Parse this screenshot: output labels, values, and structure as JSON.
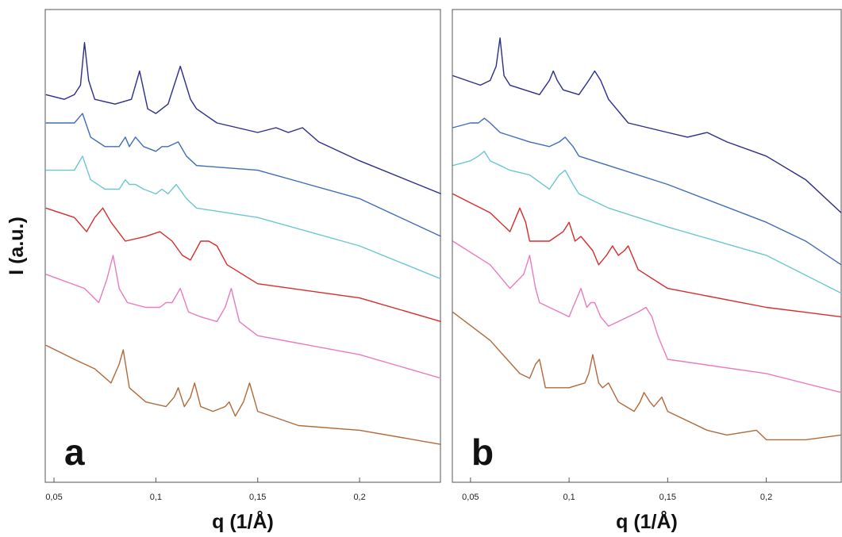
{
  "chart_data": [
    {
      "type": "line",
      "panel": "a",
      "x_label": "q (1/Å)",
      "y_label": "I (a.u.)",
      "xlim": [
        0.0457,
        0.2397
      ],
      "ylim": [
        0,
        100
      ],
      "xticks": [
        {
          "value": 0.05,
          "label": "0,05"
        },
        {
          "value": 0.1,
          "label": "0,1"
        },
        {
          "value": 0.15,
          "label": "0,15"
        },
        {
          "value": 0.2,
          "label": "0,2"
        }
      ],
      "series": [
        {
          "color": "#2b2d8a",
          "x": [
            0.046,
            0.055,
            0.06,
            0.063,
            0.065,
            0.067,
            0.07,
            0.08,
            0.088,
            0.092,
            0.096,
            0.1,
            0.106,
            0.112,
            0.117,
            0.12,
            0.13,
            0.15,
            0.159,
            0.165,
            0.172,
            0.18,
            0.2,
            0.24
          ],
          "values": [
            82,
            81,
            82,
            84,
            93,
            85,
            81,
            80,
            81,
            87,
            79,
            78,
            80,
            88,
            81,
            79,
            76,
            74,
            75,
            74,
            75,
            72,
            68,
            61
          ]
        },
        {
          "color": "#3f6db5",
          "x": [
            0.046,
            0.06,
            0.064,
            0.068,
            0.075,
            0.082,
            0.085,
            0.087,
            0.09,
            0.094,
            0.1,
            0.103,
            0.106,
            0.111,
            0.115,
            0.12,
            0.15,
            0.2,
            0.24
          ],
          "values": [
            76,
            76,
            78,
            73,
            71,
            71,
            73,
            71,
            73,
            71,
            70,
            71,
            71,
            72,
            69,
            67,
            66,
            60,
            52
          ]
        },
        {
          "color": "#6cc6d0",
          "x": [
            0.046,
            0.06,
            0.064,
            0.068,
            0.075,
            0.082,
            0.085,
            0.087,
            0.09,
            0.094,
            0.1,
            0.103,
            0.106,
            0.11,
            0.115,
            0.12,
            0.15,
            0.2,
            0.24
          ],
          "values": [
            66,
            66,
            69,
            64,
            62,
            62,
            64,
            63,
            63,
            62,
            61,
            62,
            61,
            63,
            60,
            58,
            56,
            50,
            43
          ]
        },
        {
          "color": "#d92b2b",
          "x": [
            0.046,
            0.06,
            0.066,
            0.07,
            0.074,
            0.078,
            0.085,
            0.095,
            0.102,
            0.108,
            0.113,
            0.117,
            0.122,
            0.126,
            0.13,
            0.135,
            0.15,
            0.2,
            0.24
          ],
          "values": [
            58,
            56,
            53,
            56,
            58,
            55,
            51,
            52,
            53,
            51,
            48,
            47,
            51,
            51,
            50,
            46,
            42,
            39,
            34
          ]
        },
        {
          "color": "#e87cbf",
          "x": [
            0.046,
            0.065,
            0.072,
            0.076,
            0.079,
            0.082,
            0.086,
            0.095,
            0.102,
            0.105,
            0.108,
            0.112,
            0.116,
            0.122,
            0.13,
            0.134,
            0.137,
            0.141,
            0.15,
            0.2,
            0.24
          ],
          "values": [
            44,
            41,
            38,
            43,
            48,
            41,
            38,
            37,
            37,
            38,
            38,
            41,
            36,
            35,
            34,
            37,
            41,
            34,
            31,
            27,
            22
          ]
        },
        {
          "color": "#b06a3a",
          "x": [
            0.046,
            0.06,
            0.07,
            0.078,
            0.082,
            0.084,
            0.087,
            0.095,
            0.105,
            0.109,
            0.111,
            0.114,
            0.117,
            0.119,
            0.122,
            0.128,
            0.134,
            0.136,
            0.139,
            0.143,
            0.146,
            0.15,
            0.17,
            0.2,
            0.24
          ],
          "values": [
            29,
            26,
            24,
            21,
            25,
            28,
            20,
            17,
            16,
            18,
            20,
            16,
            18,
            21,
            16,
            15,
            16,
            17,
            14,
            17,
            21,
            15,
            12,
            11,
            8
          ]
        }
      ]
    },
    {
      "type": "line",
      "panel": "b",
      "x_label": "q (1/Å)",
      "xlim": [
        0.0408,
        0.238
      ],
      "ylim": [
        0,
        100
      ],
      "xticks": [
        {
          "value": 0.05,
          "label": "0,05"
        },
        {
          "value": 0.1,
          "label": "0,1"
        },
        {
          "value": 0.15,
          "label": "0,15"
        },
        {
          "value": 0.2,
          "label": "0,2"
        }
      ],
      "series": [
        {
          "color": "#2b2d8a",
          "x": [
            0.041,
            0.055,
            0.06,
            0.063,
            0.065,
            0.067,
            0.07,
            0.085,
            0.09,
            0.092,
            0.094,
            0.097,
            0.105,
            0.11,
            0.113,
            0.116,
            0.12,
            0.13,
            0.15,
            0.16,
            0.17,
            0.18,
            0.2,
            0.22,
            0.238
          ],
          "values": [
            86,
            84,
            85,
            88,
            94,
            86,
            84,
            82,
            85,
            87,
            85,
            83,
            82,
            85,
            87,
            85,
            81,
            76,
            74,
            73,
            74,
            72,
            69,
            64,
            57
          ]
        },
        {
          "color": "#3f6db5",
          "x": [
            0.041,
            0.05,
            0.054,
            0.057,
            0.06,
            0.065,
            0.08,
            0.09,
            0.095,
            0.098,
            0.102,
            0.105,
            0.12,
            0.15,
            0.2,
            0.22,
            0.238
          ],
          "values": [
            75,
            76,
            76,
            77,
            76,
            74,
            72,
            71,
            72,
            73,
            71,
            69,
            67,
            63,
            55,
            51,
            46
          ]
        },
        {
          "color": "#6cc6d0",
          "x": [
            0.041,
            0.05,
            0.054,
            0.057,
            0.06,
            0.07,
            0.08,
            0.09,
            0.095,
            0.098,
            0.102,
            0.105,
            0.12,
            0.15,
            0.2,
            0.238
          ],
          "values": [
            67,
            68,
            69,
            70,
            68,
            66,
            65,
            62,
            65,
            66,
            63,
            61,
            58,
            54,
            48,
            40
          ]
        },
        {
          "color": "#d92b2b",
          "x": [
            0.041,
            0.06,
            0.07,
            0.073,
            0.075,
            0.078,
            0.08,
            0.09,
            0.097,
            0.1,
            0.103,
            0.106,
            0.108,
            0.112,
            0.115,
            0.119,
            0.122,
            0.125,
            0.128,
            0.13,
            0.133,
            0.135,
            0.15,
            0.2,
            0.238
          ],
          "values": [
            61,
            57,
            53,
            56,
            58,
            55,
            51,
            51,
            53,
            55,
            51,
            52,
            51,
            49,
            46,
            48,
            50,
            48,
            49,
            50,
            47,
            45,
            41,
            37,
            35
          ]
        },
        {
          "color": "#e87cbf",
          "x": [
            0.041,
            0.06,
            0.07,
            0.077,
            0.08,
            0.083,
            0.085,
            0.1,
            0.104,
            0.106,
            0.109,
            0.111,
            0.113,
            0.116,
            0.12,
            0.13,
            0.135,
            0.139,
            0.142,
            0.145,
            0.15,
            0.2,
            0.238
          ],
          "values": [
            51,
            46,
            41,
            44,
            48,
            41,
            38,
            35,
            39,
            41,
            37,
            38,
            38,
            35,
            33,
            35,
            36,
            37,
            35,
            31,
            26,
            23,
            19
          ]
        },
        {
          "color": "#b06a3a",
          "x": [
            0.041,
            0.06,
            0.075,
            0.08,
            0.083,
            0.085,
            0.088,
            0.1,
            0.108,
            0.11,
            0.112,
            0.115,
            0.117,
            0.12,
            0.125,
            0.133,
            0.136,
            0.138,
            0.141,
            0.143,
            0.147,
            0.15,
            0.17,
            0.18,
            0.195,
            0.2,
            0.22,
            0.238
          ],
          "values": [
            36,
            30,
            23,
            22,
            25,
            26,
            20,
            20,
            21,
            23,
            27,
            21,
            20,
            21,
            17,
            15,
            17,
            19,
            17,
            16,
            18,
            15,
            11,
            10,
            11,
            9,
            9,
            10
          ]
        }
      ]
    }
  ]
}
